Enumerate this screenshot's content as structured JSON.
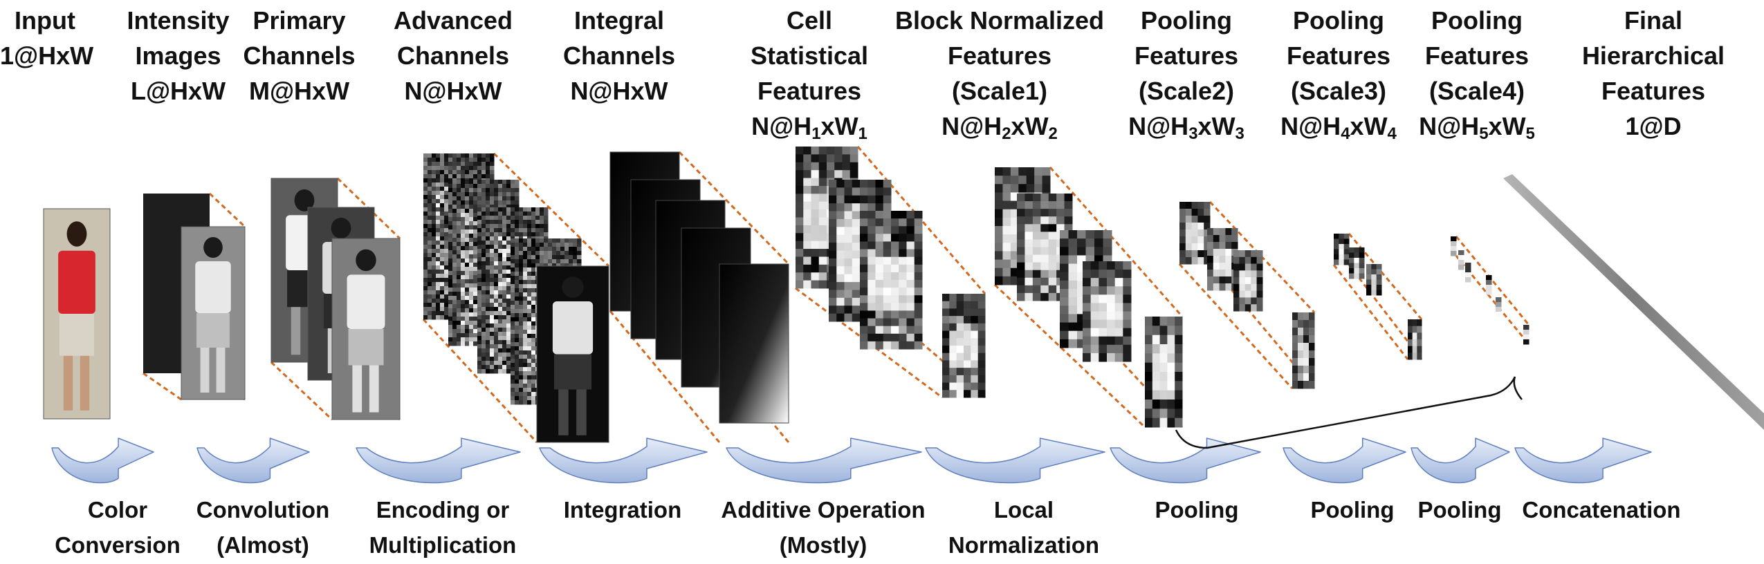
{
  "stages": [
    {
      "id": "input",
      "lines": [
        "Input",
        "1@HxW"
      ]
    },
    {
      "id": "intensity",
      "lines": [
        "Intensity",
        "Images",
        "L@HxW"
      ]
    },
    {
      "id": "primary",
      "lines": [
        "Primary",
        "Channels",
        "M@HxW"
      ]
    },
    {
      "id": "advanced",
      "lines": [
        "Advanced",
        "Channels",
        "N@HxW"
      ]
    },
    {
      "id": "integral",
      "lines": [
        "Integral",
        "Channels",
        "N@HxW"
      ]
    },
    {
      "id": "cell",
      "lines": [
        "Cell",
        "Statistical",
        "Features"
      ],
      "dims": {
        "pre": "N@H",
        "sub1": "1",
        "mid": "xW",
        "sub2": "1"
      }
    },
    {
      "id": "block",
      "lines": [
        "Block Normalized",
        "Features",
        "(Scale1)"
      ],
      "dims": {
        "pre": "N@H",
        "sub1": "2",
        "mid": "xW",
        "sub2": "2"
      }
    },
    {
      "id": "pool2",
      "lines": [
        "Pooling",
        "Features",
        "(Scale2)"
      ],
      "dims": {
        "pre": "N@H",
        "sub1": "3",
        "mid": "xW",
        "sub2": "3"
      }
    },
    {
      "id": "pool3",
      "lines": [
        "Pooling",
        "Features",
        "(Scale3)"
      ],
      "dims": {
        "pre": "N@H",
        "sub1": "4",
        "mid": "xW",
        "sub2": "4"
      }
    },
    {
      "id": "pool4",
      "lines": [
        "Pooling",
        "Features",
        "(Scale4)"
      ],
      "dims": {
        "pre": "N@H",
        "sub1": "5",
        "mid": "xW",
        "sub2": "5"
      }
    },
    {
      "id": "final",
      "lines": [
        "Final",
        "Hierarchical",
        "Features",
        "1@D"
      ]
    }
  ],
  "operations": [
    {
      "id": "color-conversion",
      "lines": [
        "Color",
        "Conversion"
      ]
    },
    {
      "id": "convolution",
      "lines": [
        "Convolution",
        "(Almost)"
      ]
    },
    {
      "id": "encoding",
      "lines": [
        "Encoding or",
        "Multiplication"
      ]
    },
    {
      "id": "integration",
      "lines": [
        "Integration"
      ]
    },
    {
      "id": "additive",
      "lines": [
        "Additive Operation",
        "(Mostly)"
      ]
    },
    {
      "id": "local-normalization",
      "lines": [
        "Local",
        "Normalization"
      ]
    },
    {
      "id": "pooling-1",
      "lines": [
        "Pooling"
      ]
    },
    {
      "id": "pooling-2",
      "lines": [
        "Pooling"
      ]
    },
    {
      "id": "pooling-3",
      "lines": [
        "Pooling"
      ]
    },
    {
      "id": "concatenation",
      "lines": [
        "Concatenation"
      ]
    }
  ],
  "colors": {
    "text": "#111111",
    "dashed_connector": "#d2691e",
    "arrow_fill": "#c5d3ec",
    "arrow_stroke": "#5f7fbf",
    "final_bar": "#8c8c8c",
    "shirt_red": "#d7262e"
  }
}
